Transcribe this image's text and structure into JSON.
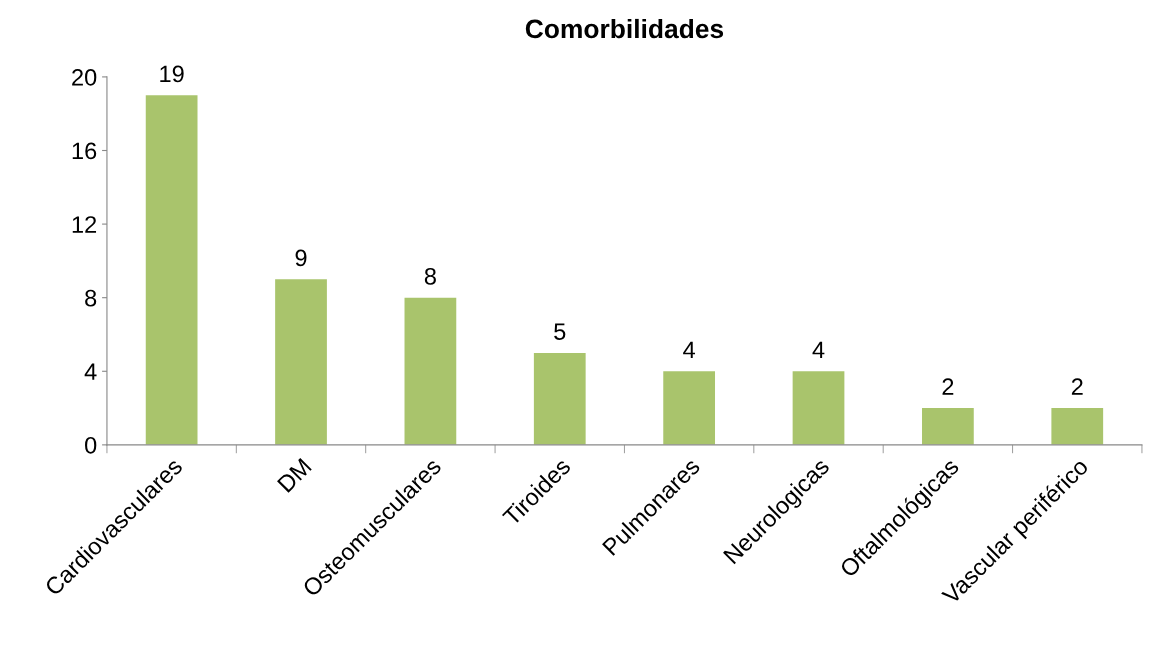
{
  "chart_data": {
    "type": "bar",
    "title": "Comorbilidades",
    "categories": [
      "Cardiovasculares",
      "DM",
      "Osteomusculares",
      "Tiroides",
      "Pulmonares",
      "Neurologicas",
      "Oftalmológicas",
      "Vascular periférico"
    ],
    "values": [
      19,
      9,
      8,
      5,
      4,
      4,
      2,
      2
    ],
    "color": "#a9c46c",
    "ylim": [
      0,
      20
    ],
    "yticks": [
      0,
      4,
      8,
      12,
      16,
      20
    ],
    "data_labels": true,
    "grid": false,
    "legend": false
  }
}
